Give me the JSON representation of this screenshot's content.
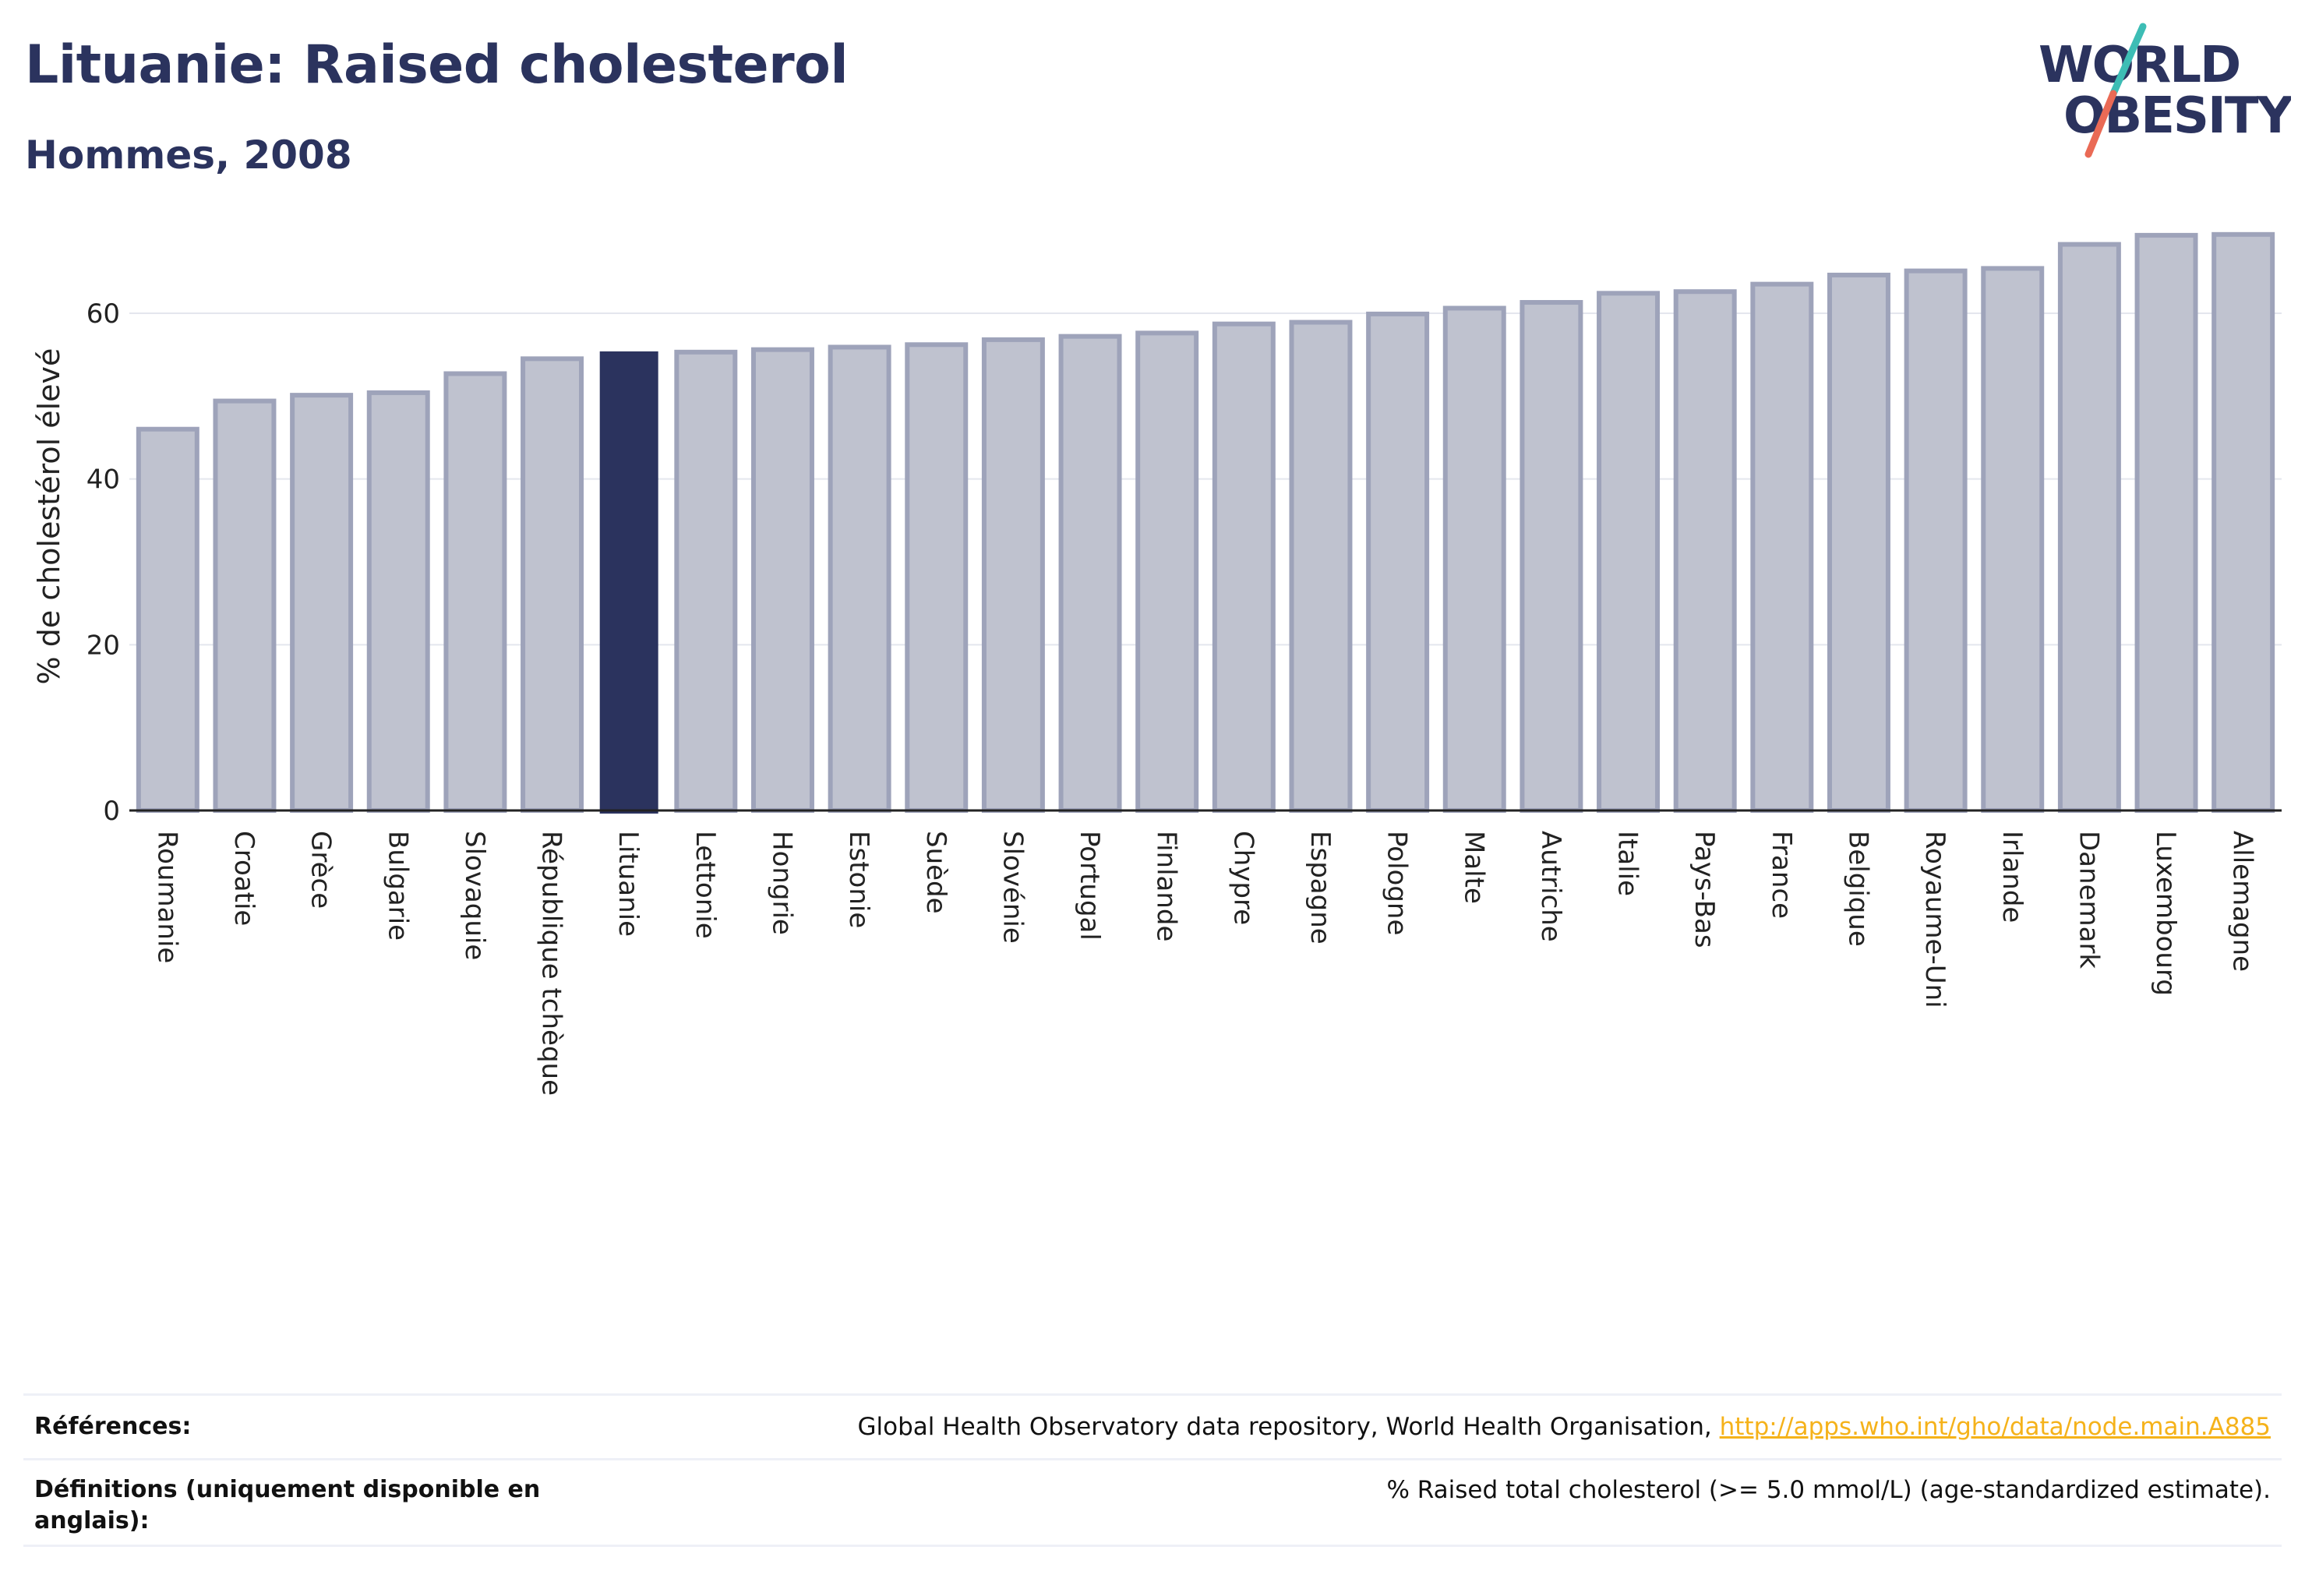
{
  "header": {
    "title": "Lituanie: Raised cholesterol",
    "subtitle": "Hommes, 2008"
  },
  "logo": {
    "line1": "WORLD",
    "line2": "OBESITY",
    "colors": {
      "text": "#2b335e",
      "slash_top": "#3dbdb5",
      "slash_bottom": "#ea6a55"
    }
  },
  "colors": {
    "highlight": "#2b335e",
    "bar_fill": "#bfc2cf",
    "bar_stroke": "#9ea3ba",
    "grid": "#e4e6ee",
    "axis": "#222222"
  },
  "chart_data": {
    "type": "bar",
    "title": "Lituanie: Raised cholesterol",
    "subtitle": "Hommes, 2008",
    "xlabel": "",
    "ylabel": "% de cholestérol élevé",
    "ylim": [
      0,
      71
    ],
    "yticks": [
      0,
      20,
      40,
      60
    ],
    "grid": true,
    "highlight": "Lituanie",
    "categories": [
      "Roumanie",
      "Croatie",
      "Grèce",
      "Bulgarie",
      "Slovaquie",
      "République tchèque",
      "Lituanie",
      "Lettonie",
      "Hongrie",
      "Estonie",
      "Suède",
      "Slovénie",
      "Portugal",
      "Finlande",
      "Chypre",
      "Espagne",
      "Pologne",
      "Malte",
      "Autriche",
      "Italie",
      "Pays-Bas",
      "France",
      "Belgique",
      "Royaume-Uni",
      "Irlande",
      "Danemark",
      "Luxembourg",
      "Allemagne"
    ],
    "values": [
      46.2,
      49.6,
      50.3,
      50.6,
      52.9,
      54.7,
      55.4,
      55.5,
      55.8,
      56.1,
      56.4,
      57.0,
      57.4,
      57.8,
      58.9,
      59.1,
      60.1,
      60.8,
      61.5,
      62.6,
      62.8,
      63.7,
      64.8,
      65.3,
      65.6,
      68.5,
      69.6,
      69.7
    ]
  },
  "footer": {
    "references_label": "Références:",
    "references_text": "Global Health Observatory data repository, World Health Organisation,",
    "references_link": "http://apps.who.int/gho/data/node.main.A885",
    "definitions_label": "Définitions (uniquement disponible en anglais):",
    "definitions_text": "% Raised total cholesterol (>= 5.0 mmol/L) (age-standardized estimate)."
  }
}
